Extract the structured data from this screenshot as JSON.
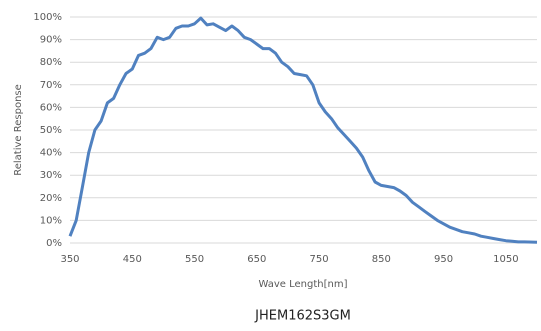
{
  "chart_data": {
    "type": "line",
    "title": "JHEM162S3GM",
    "xlabel": "Wave Length[nm]",
    "ylabel": "Relative Response",
    "x": [
      350,
      360,
      370,
      380,
      390,
      400,
      410,
      420,
      430,
      440,
      450,
      460,
      470,
      480,
      490,
      500,
      510,
      520,
      530,
      540,
      550,
      560,
      570,
      580,
      590,
      600,
      610,
      620,
      630,
      640,
      650,
      660,
      670,
      680,
      690,
      700,
      710,
      720,
      730,
      740,
      750,
      760,
      770,
      780,
      790,
      800,
      810,
      820,
      830,
      840,
      850,
      860,
      870,
      880,
      890,
      900,
      910,
      920,
      930,
      940,
      950,
      960,
      970,
      980,
      990,
      1000,
      1010,
      1020,
      1030,
      1040,
      1050,
      1060,
      1070,
      1080,
      1100
    ],
    "series": [
      {
        "name": "Relative Response",
        "color": "#5081c0",
        "values": [
          3,
          10,
          25,
          40,
          50,
          54,
          62,
          64,
          70,
          75,
          77,
          83,
          84,
          86,
          91,
          90,
          91,
          95,
          96,
          96,
          97,
          99.5,
          96.5,
          97,
          95.5,
          94,
          96,
          94,
          91,
          90,
          88,
          86,
          86,
          84,
          80,
          78,
          75,
          74.5,
          74,
          70,
          62,
          58,
          55,
          51,
          48,
          45,
          42,
          38,
          32,
          27,
          25.5,
          25,
          24.5,
          23,
          21,
          18,
          16,
          14,
          12,
          10,
          8.5,
          7,
          6,
          5,
          4.5,
          4,
          3,
          2.5,
          2,
          1.5,
          1,
          0.8,
          0.5,
          0.5,
          0.3
        ]
      }
    ],
    "xlim": [
      350,
      1100
    ],
    "xticks": [
      350,
      450,
      550,
      650,
      750,
      850,
      950,
      1050
    ],
    "ylim": [
      0,
      100
    ],
    "yticks": [
      {
        "value": 0,
        "label": "0%"
      },
      {
        "value": 10,
        "label": "10%"
      },
      {
        "value": 20,
        "label": "20%"
      },
      {
        "value": 30,
        "label": "30%"
      },
      {
        "value": 40,
        "label": "40%"
      },
      {
        "value": 50,
        "label": "50%"
      },
      {
        "value": 60,
        "label": "60%"
      },
      {
        "value": 70,
        "label": "70%"
      },
      {
        "value": 80,
        "label": "80%"
      },
      {
        "value": 90,
        "label": "90%"
      },
      {
        "value": 100,
        "label": "100%"
      }
    ],
    "grid": true
  }
}
